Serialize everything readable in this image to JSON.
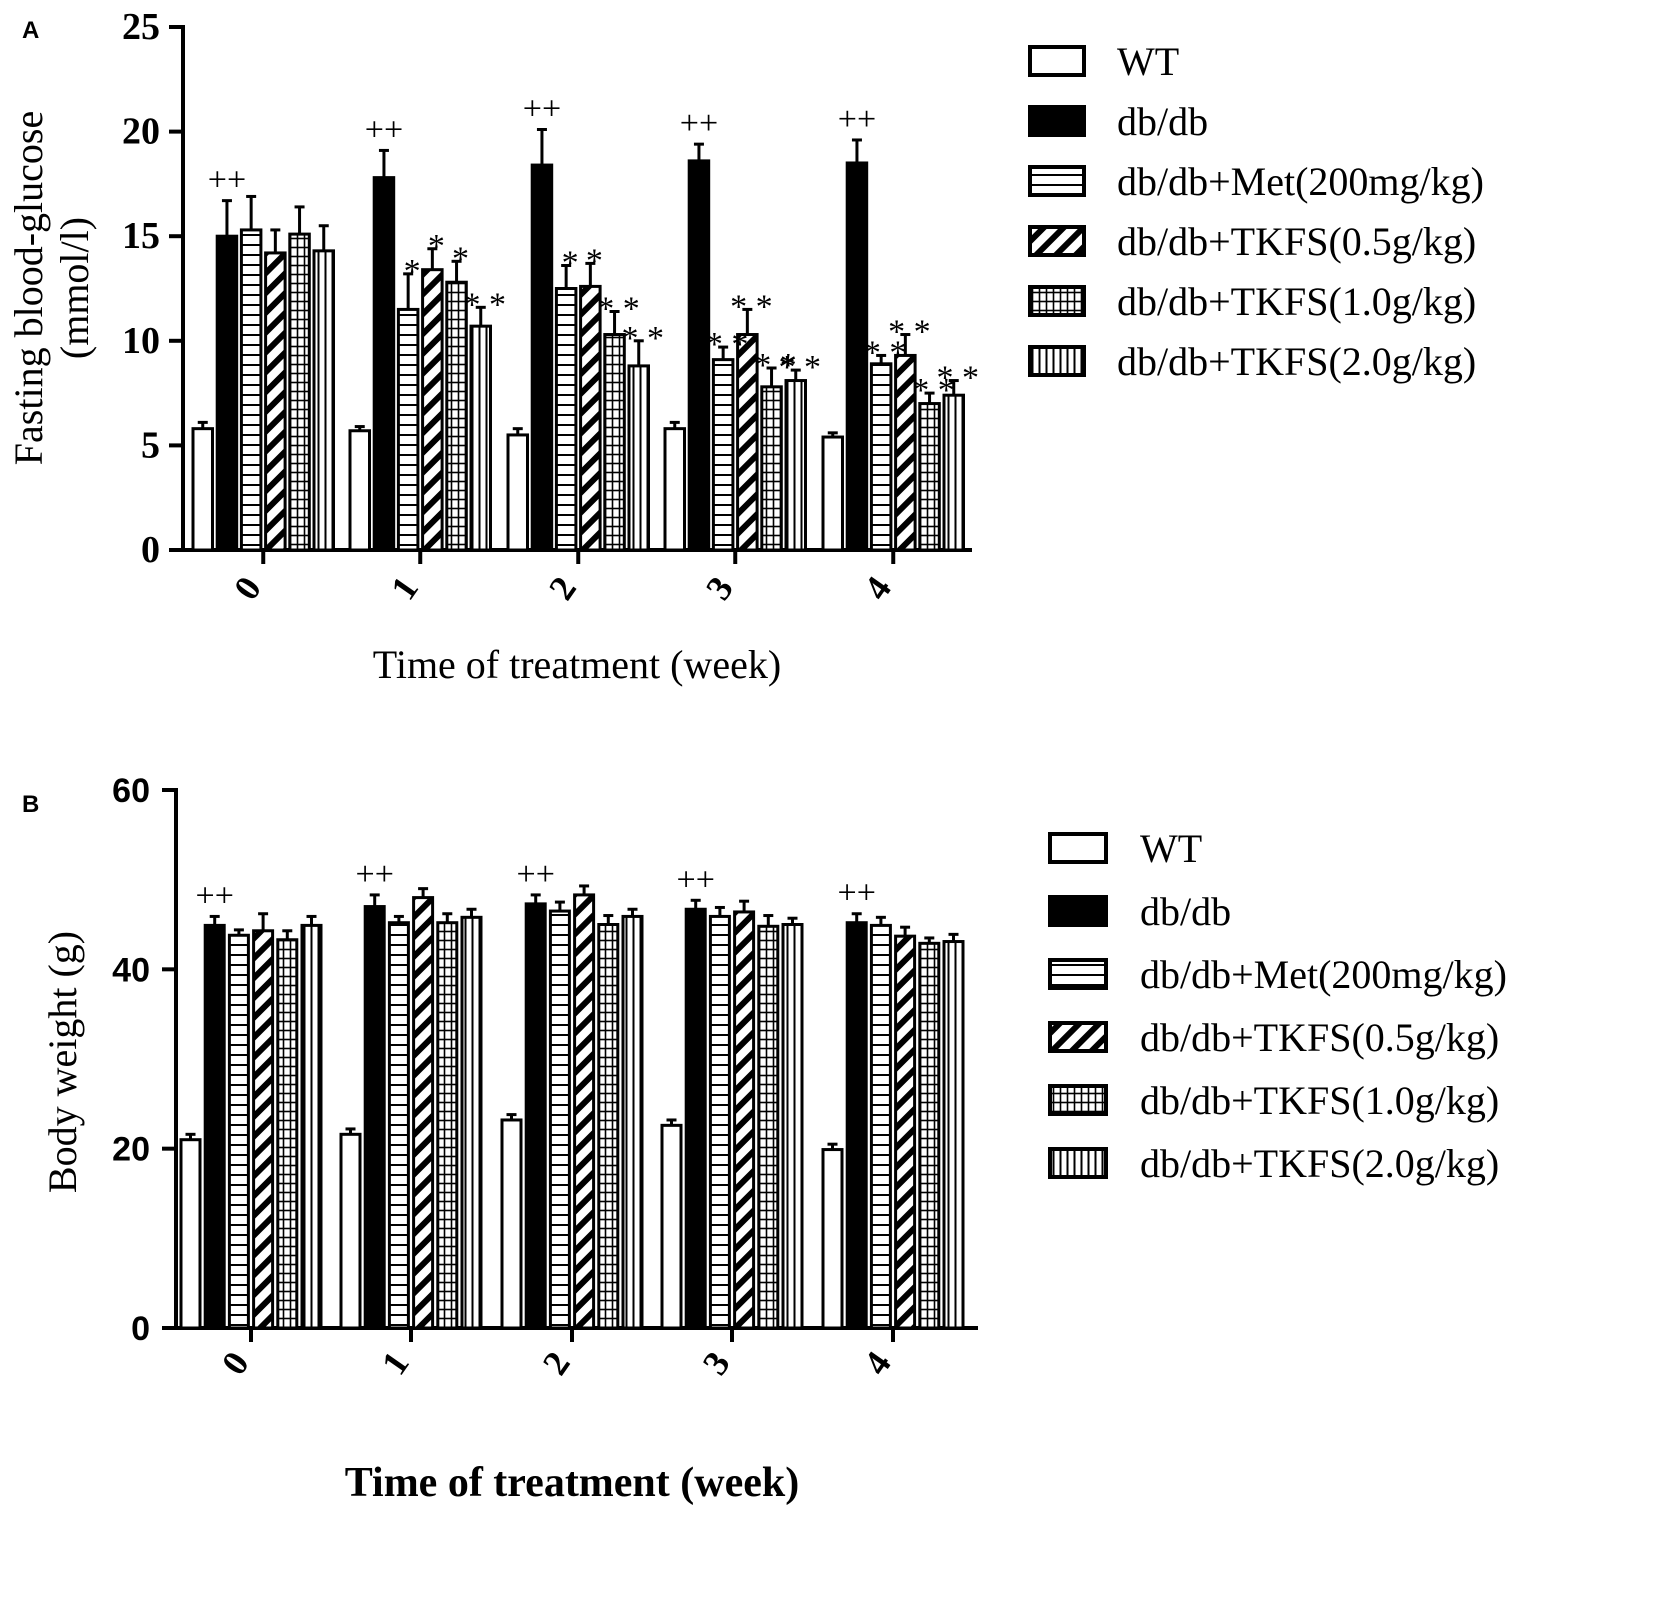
{
  "panel_a_label": "A",
  "panel_b_label": "B",
  "chart_data": [
    {
      "type": "bar",
      "panel": "A",
      "title": "",
      "xlabel": "Time of treatment (week)",
      "ylabel_line1": "Fasting blood-glucose",
      "ylabel_line2": "(mmol/l)",
      "ylim": [
        0,
        25
      ],
      "yticks": [
        "0",
        "5",
        "10",
        "15",
        "20",
        "25"
      ],
      "categories": [
        "0",
        "1",
        "2",
        "3",
        "4"
      ],
      "series": [
        {
          "name": "WT",
          "pattern": "open",
          "values": [
            5.8,
            5.7,
            5.5,
            5.8,
            5.4
          ],
          "errors": [
            0.3,
            0.2,
            0.3,
            0.3,
            0.2
          ]
        },
        {
          "name": "db/db",
          "pattern": "solid",
          "values": [
            15.0,
            17.8,
            18.4,
            18.6,
            18.5
          ],
          "errors": [
            1.7,
            1.3,
            1.7,
            0.8,
            1.1
          ]
        },
        {
          "name": "db/db+Met(200mg/kg)",
          "pattern": "hlines",
          "values": [
            15.3,
            11.5,
            12.5,
            9.1,
            8.9
          ],
          "errors": [
            1.6,
            1.7,
            1.1,
            0.6,
            0.4
          ]
        },
        {
          "name": "db/db+TKFS(0.5g/kg)",
          "pattern": "diag",
          "values": [
            14.2,
            13.4,
            12.6,
            10.3,
            9.3
          ],
          "errors": [
            1.1,
            1.0,
            1.1,
            1.2,
            1.0
          ]
        },
        {
          "name": "db/db+TKFS(1.0g/kg)",
          "pattern": "grid",
          "values": [
            15.1,
            12.8,
            10.3,
            7.8,
            7.0
          ],
          "errors": [
            1.3,
            1.0,
            1.1,
            0.9,
            0.5
          ]
        },
        {
          "name": "db/db+TKFS(2.0g/kg)",
          "pattern": "vlines",
          "values": [
            14.3,
            10.7,
            8.8,
            8.1,
            7.4
          ],
          "errors": [
            1.2,
            0.9,
            1.2,
            0.5,
            0.7
          ]
        }
      ],
      "annotations": [
        {
          "category": 0,
          "series": 1,
          "text": "++"
        },
        {
          "category": 1,
          "series": 1,
          "text": "++"
        },
        {
          "category": 2,
          "series": 1,
          "text": "++"
        },
        {
          "category": 3,
          "series": 1,
          "text": "++"
        },
        {
          "category": 4,
          "series": 1,
          "text": "++"
        },
        {
          "category": 1,
          "series": 2,
          "text": "*"
        },
        {
          "category": 1,
          "series": 3,
          "text": "*"
        },
        {
          "category": 1,
          "series": 4,
          "text": "*"
        },
        {
          "category": 1,
          "series": 5,
          "text": "* *"
        },
        {
          "category": 2,
          "series": 2,
          "text": "*"
        },
        {
          "category": 2,
          "series": 3,
          "text": "*"
        },
        {
          "category": 2,
          "series": 4,
          "text": "* *"
        },
        {
          "category": 2,
          "series": 5,
          "text": "* *"
        },
        {
          "category": 3,
          "series": 2,
          "text": "* *"
        },
        {
          "category": 3,
          "series": 3,
          "text": "* *"
        },
        {
          "category": 3,
          "series": 4,
          "text": "* *"
        },
        {
          "category": 3,
          "series": 5,
          "text": "* *"
        },
        {
          "category": 4,
          "series": 2,
          "text": "* *"
        },
        {
          "category": 4,
          "series": 3,
          "text": "* *"
        },
        {
          "category": 4,
          "series": 4,
          "text": "* *"
        },
        {
          "category": 4,
          "series": 5,
          "text": "* *"
        }
      ],
      "legend": [
        "WT",
        "db/db",
        "db/db+Met(200mg/kg)",
        "db/db+TKFS(0.5g/kg)",
        "db/db+TKFS(1.0g/kg)",
        "db/db+TKFS(2.0g/kg)"
      ],
      "legend_position": "right"
    },
    {
      "type": "bar",
      "panel": "B",
      "title": "",
      "xlabel": "Time of treatment (week)",
      "ylabel": "Body weight (g)",
      "ylim": [
        0,
        60
      ],
      "yticks": [
        "0",
        "20",
        "40",
        "60"
      ],
      "categories": [
        "0",
        "1",
        "2",
        "3",
        "4"
      ],
      "series": [
        {
          "name": "WT",
          "pattern": "open",
          "values": [
            21.0,
            21.6,
            23.2,
            22.6,
            19.9
          ],
          "errors": [
            0.6,
            0.6,
            0.6,
            0.6,
            0.6
          ]
        },
        {
          "name": "db/db",
          "pattern": "solid",
          "values": [
            44.9,
            47.0,
            47.3,
            46.7,
            45.2
          ],
          "errors": [
            1.0,
            1.3,
            1.0,
            1.0,
            1.0
          ]
        },
        {
          "name": "db/db+Met(200mg/kg)",
          "pattern": "hlines",
          "values": [
            43.8,
            45.2,
            46.5,
            45.9,
            44.9
          ],
          "errors": [
            0.6,
            0.7,
            1.0,
            1.0,
            0.9
          ]
        },
        {
          "name": "db/db+TKFS(0.5g/kg)",
          "pattern": "diag",
          "values": [
            44.3,
            48.0,
            48.3,
            46.4,
            43.7
          ],
          "errors": [
            1.9,
            1.0,
            1.0,
            1.2,
            1.0
          ]
        },
        {
          "name": "db/db+TKFS(1.0g/kg)",
          "pattern": "grid",
          "values": [
            43.3,
            45.2,
            45.0,
            44.8,
            42.9
          ],
          "errors": [
            1.0,
            1.0,
            1.0,
            1.2,
            0.6
          ]
        },
        {
          "name": "db/db+TKFS(2.0g/kg)",
          "pattern": "vlines",
          "values": [
            44.9,
            45.8,
            45.9,
            45.0,
            43.1
          ],
          "errors": [
            1.0,
            0.9,
            0.8,
            0.7,
            0.8
          ]
        }
      ],
      "annotations": [
        {
          "category": 0,
          "series": 1,
          "text": "++"
        },
        {
          "category": 1,
          "series": 1,
          "text": "++"
        },
        {
          "category": 2,
          "series": 1,
          "text": "++"
        },
        {
          "category": 3,
          "series": 1,
          "text": "++"
        },
        {
          "category": 4,
          "series": 1,
          "text": "++"
        }
      ],
      "legend": [
        "WT",
        "db/db",
        "db/db+Met(200mg/kg)",
        "db/db+TKFS(0.5g/kg)",
        "db/db+TKFS(1.0g/kg)",
        "db/db+TKFS(2.0g/kg)"
      ],
      "legend_position": "right"
    }
  ]
}
